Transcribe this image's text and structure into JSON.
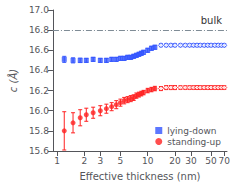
{
  "chart_data": {
    "type": "scatter",
    "xlabel": "Effective thickness (nm)",
    "ylabel": "c (Å)",
    "log": "x",
    "grid": false,
    "legend": "lower right",
    "xlim": [
      0.9,
      75
    ],
    "xticks": [
      1,
      2,
      3,
      5,
      10,
      20,
      30,
      50,
      70
    ],
    "ylim": [
      15.6,
      17.0
    ],
    "yticks": [
      15.6,
      15.8,
      {
        "value": 16.0,
        "label": "16.0"
      },
      16.2,
      16.4,
      16.6,
      16.8,
      {
        "value": 17.0,
        "label": "17.0"
      }
    ],
    "annotations": [
      {
        "text": "bulk",
        "y": 16.8,
        "line_style": "dashdot"
      }
    ],
    "series": [
      {
        "name": "lying-down",
        "color": "#3355ff",
        "marker": "square",
        "x": [
          1.2,
          1.5,
          1.8,
          2.1,
          2.5,
          3.0,
          3.5,
          4.0,
          4.5,
          5.0,
          5.5,
          6.0,
          6.5,
          7.0,
          7.5,
          8.0,
          8.5,
          9.0,
          10.0,
          11.0,
          12.0
        ],
        "values": [
          16.51,
          16.5,
          16.5,
          16.5,
          16.51,
          16.5,
          16.5,
          16.51,
          16.51,
          16.52,
          16.52,
          16.53,
          16.53,
          16.54,
          16.55,
          16.56,
          16.57,
          16.58,
          16.6,
          16.62,
          16.63
        ],
        "yerr": [
          0.03,
          0.025,
          0.022,
          0.02,
          0.02,
          0.02,
          0.02,
          0.02,
          0.02,
          0.02,
          0.02,
          0.02,
          0.02,
          0.02,
          0.02,
          0.02,
          0.02,
          0.02,
          0.02,
          0.02,
          0.02
        ]
      },
      {
        "color": "#3355ff",
        "marker": "open-diamond",
        "x": [
          14.0,
          16.0,
          18.0,
          20.0,
          23.0,
          26.0,
          29.0,
          32.0,
          35.0,
          38.0,
          42.0,
          46.0,
          50.0,
          55.0,
          60.0,
          65.0,
          70.0
        ],
        "values": [
          16.65,
          16.65,
          16.65,
          16.65,
          16.65,
          16.65,
          16.65,
          16.65,
          16.65,
          16.65,
          16.65,
          16.65,
          16.65,
          16.65,
          16.65,
          16.65,
          16.65
        ],
        "yerr": [
          0.015,
          0.015,
          0.015,
          0.015,
          0.015,
          0.015,
          0.015,
          0.015,
          0.015,
          0.015,
          0.015,
          0.015,
          0.015,
          0.015,
          0.015,
          0.015,
          0.015
        ]
      },
      {
        "name": "standing-up",
        "color": "#ff2222",
        "marker": "circle",
        "x": [
          1.2,
          1.5,
          1.8,
          2.1,
          2.5,
          3.0,
          3.5,
          4.0,
          4.5,
          5.0,
          5.5,
          6.0,
          6.5,
          7.0,
          7.5,
          8.0,
          8.5,
          9.0,
          10.0,
          11.0,
          12.0
        ],
        "values": [
          15.8,
          15.88,
          15.93,
          15.96,
          15.98,
          16.0,
          16.02,
          16.04,
          16.06,
          16.08,
          16.1,
          16.11,
          16.12,
          16.13,
          16.15,
          16.16,
          16.17,
          16.18,
          16.2,
          16.21,
          16.22
        ],
        "yerr": [
          0.19,
          0.1,
          0.08,
          0.065,
          0.055,
          0.05,
          0.045,
          0.04,
          0.04,
          0.035,
          0.032,
          0.03,
          0.03,
          0.028,
          0.026,
          0.024,
          0.023,
          0.022,
          0.022,
          0.022,
          0.022
        ]
      },
      {
        "color": "#ff2222",
        "marker": "open-diamond",
        "x": [
          14.0,
          16.0,
          18.0,
          20.0,
          23.0,
          26.0,
          29.0,
          32.0,
          35.0,
          38.0,
          42.0,
          46.0,
          50.0,
          55.0,
          60.0,
          65.0,
          70.0
        ],
        "values": [
          16.22,
          16.23,
          16.23,
          16.23,
          16.23,
          16.23,
          16.23,
          16.23,
          16.23,
          16.23,
          16.23,
          16.23,
          16.23,
          16.23,
          16.23,
          16.23,
          16.23
        ],
        "yerr": [
          0.02,
          0.02,
          0.02,
          0.02,
          0.018,
          0.018,
          0.018,
          0.018,
          0.018,
          0.018,
          0.018,
          0.018,
          0.018,
          0.018,
          0.018,
          0.018,
          0.018
        ]
      }
    ]
  }
}
